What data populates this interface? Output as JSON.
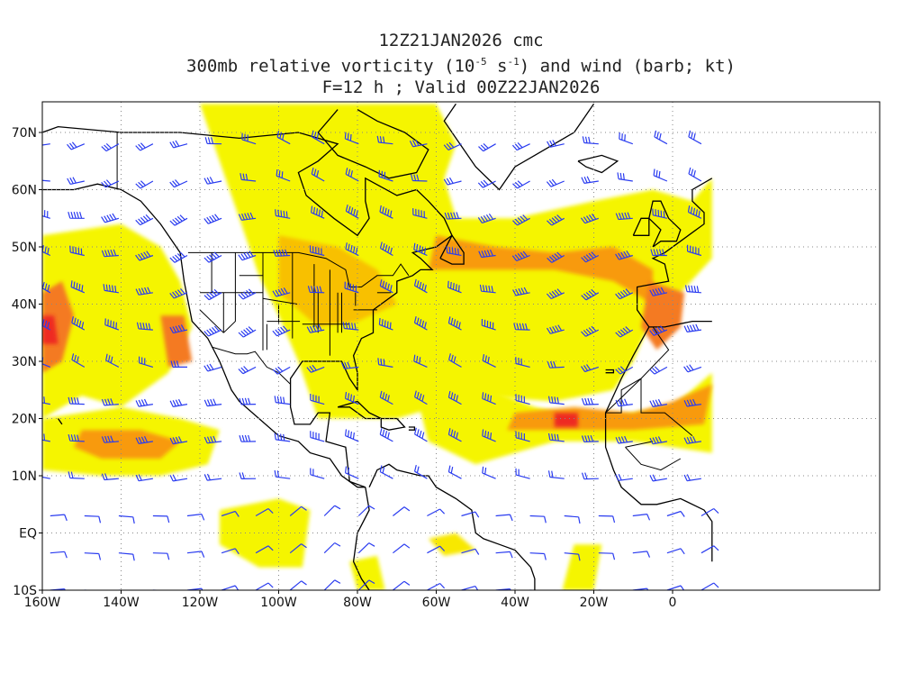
{
  "titles": {
    "line1": "12Z21JAN2026 cmc",
    "line2_prefix": "300mb relative vorticity (10",
    "line2_exp1": "-5",
    "line2_mid": " s",
    "line2_exp2": "-1",
    "line2_suffix": ") and wind (barb; kt)",
    "line3": "F=12 h ; Valid 00Z22JAN2026"
  },
  "axes": {
    "lat_labels": [
      "70N",
      "60N",
      "50N",
      "40N",
      "30N",
      "20N",
      "10N",
      "EQ",
      "10S"
    ],
    "lon_labels": [
      "160W",
      "140W",
      "120W",
      "100W",
      "80W",
      "60W",
      "40W",
      "20W",
      "0"
    ]
  },
  "colors": {
    "shade_light": "#f5f500",
    "shade_light2": "#f8e800",
    "shade_orange1": "#f8c000",
    "shade_orange2": "#f89a10",
    "shade_orange3": "#f47a20",
    "shade_red": "#ee2a20",
    "barb": "#2a3cf0",
    "coast": "#000000",
    "grid": "#888888"
  }
}
